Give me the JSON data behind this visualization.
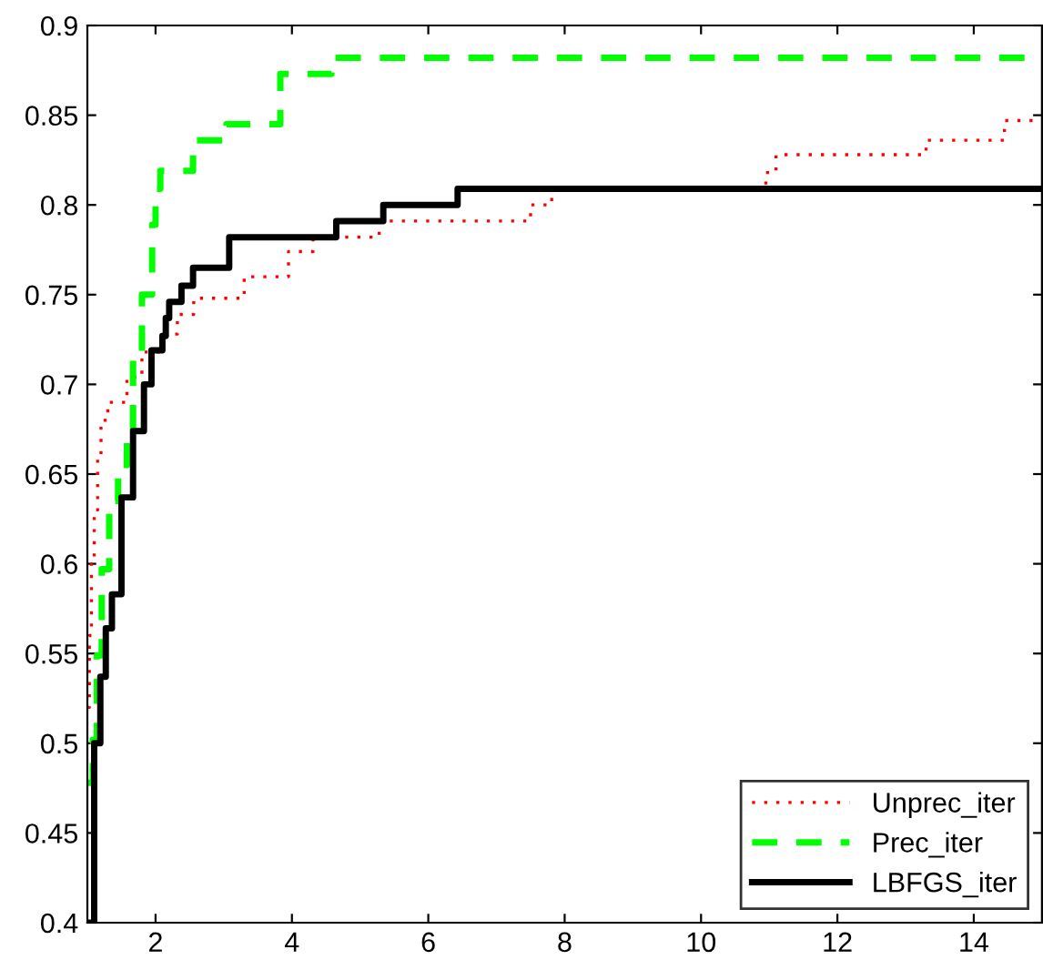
{
  "chart_data": {
    "type": "step",
    "series": [
      {
        "name": "Unprec_iter",
        "color": "#ff0000",
        "line_style": "dotted",
        "x": [
          1,
          1.03,
          1.06,
          1.1,
          1.15,
          1.2,
          1.3,
          1.58,
          1.8,
          2.11,
          2.32,
          2.56,
          3.3,
          3.95,
          4.31,
          5.28,
          7.5,
          7.81,
          10.95,
          11.1,
          13.3,
          14.45,
          15
        ],
        "values": [
          0.52,
          0.56,
          0.6,
          0.63,
          0.66,
          0.68,
          0.69,
          0.704,
          0.718,
          0.728,
          0.739,
          0.748,
          0.76,
          0.774,
          0.782,
          0.791,
          0.8,
          0.809,
          0.818,
          0.828,
          0.836,
          0.847,
          0.847
        ]
      },
      {
        "name": "Prec_iter",
        "color": "#00ff00",
        "line_style": "dashed",
        "x": [
          1,
          1.08,
          1.14,
          1.21,
          1.32,
          1.45,
          1.58,
          1.67,
          1.8,
          1.95,
          2.0,
          2.07,
          2.55,
          3.04,
          3.83,
          4.58,
          15
        ],
        "values": [
          0.478,
          0.502,
          0.549,
          0.597,
          0.635,
          0.655,
          0.674,
          0.718,
          0.75,
          0.789,
          0.809,
          0.819,
          0.836,
          0.845,
          0.873,
          0.882,
          0.882
        ]
      },
      {
        "name": "LBFGS_iter",
        "color": "#000000",
        "line_style": "solid",
        "x": [
          1,
          1.1,
          1.19,
          1.27,
          1.36,
          1.5,
          1.67,
          1.83,
          1.94,
          2.1,
          2.15,
          2.2,
          2.38,
          2.55,
          3.08,
          4.65,
          5.34,
          6.43,
          15
        ],
        "values": [
          0.4,
          0.5,
          0.537,
          0.564,
          0.583,
          0.637,
          0.674,
          0.7,
          0.719,
          0.727,
          0.737,
          0.746,
          0.755,
          0.765,
          0.782,
          0.791,
          0.8,
          0.809,
          0.809
        ]
      }
    ],
    "xlim": [
      1,
      15
    ],
    "xticks": [
      2,
      4,
      6,
      8,
      10,
      12,
      14
    ],
    "ylim": [
      0.4,
      0.9
    ],
    "yticks": [
      0.4,
      0.45,
      0.5,
      0.55,
      0.6,
      0.65,
      0.7,
      0.75,
      0.8,
      0.85,
      0.9
    ],
    "grid": false,
    "legend": "bottom right"
  }
}
